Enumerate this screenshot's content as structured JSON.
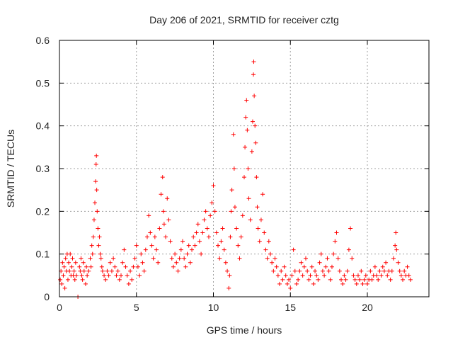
{
  "chart_data": {
    "type": "scatter",
    "title": "Day 206 of 2021, SRMTID for receiver cztg",
    "xlabel": "GPS time / hours",
    "ylabel": "SRMTID / TECUs",
    "xlim": [
      0,
      24
    ],
    "ylim": [
      0,
      0.6
    ],
    "xticks": [
      0,
      5,
      10,
      15,
      20
    ],
    "yticks": [
      0,
      0.1,
      0.2,
      0.3,
      0.4,
      0.5,
      0.6
    ],
    "xtick_labels": [
      "0",
      "5",
      "10",
      "15",
      "20"
    ],
    "ytick_labels": [
      "0",
      "0.1",
      "0.2",
      "0.3",
      "0.4",
      "0.5",
      "0.6"
    ],
    "grid": true,
    "marker": "plus",
    "marker_color": "#ff0000",
    "series": [
      {
        "name": "SRMTID",
        "points": [
          [
            0.05,
            0.04
          ],
          [
            0.1,
            0.06
          ],
          [
            0.15,
            0.03
          ],
          [
            0.2,
            0.08
          ],
          [
            0.25,
            0.05
          ],
          [
            0.3,
            0.07
          ],
          [
            0.35,
            0.02
          ],
          [
            0.4,
            0.09
          ],
          [
            0.45,
            0.06
          ],
          [
            0.5,
            0.1
          ],
          [
            0.55,
            0.04
          ],
          [
            0.6,
            0.08
          ],
          [
            0.65,
            0.06
          ],
          [
            0.7,
            0.1
          ],
          [
            0.75,
            0.05
          ],
          [
            0.8,
            0.07
          ],
          [
            0.85,
            0.09
          ],
          [
            0.9,
            0.05
          ],
          [
            0.95,
            0.06
          ],
          [
            1.0,
            0.04
          ],
          [
            1.05,
            0.08
          ],
          [
            1.1,
            0.05
          ],
          [
            1.2,
            0.0
          ],
          [
            1.3,
            0.07
          ],
          [
            1.35,
            0.06
          ],
          [
            1.4,
            0.09
          ],
          [
            1.45,
            0.05
          ],
          [
            1.5,
            0.04
          ],
          [
            1.55,
            0.08
          ],
          [
            1.6,
            0.06
          ],
          [
            1.7,
            0.03
          ],
          [
            1.75,
            0.07
          ],
          [
            1.8,
            0.05
          ],
          [
            1.9,
            0.06
          ],
          [
            2.0,
            0.09
          ],
          [
            2.05,
            0.07
          ],
          [
            2.1,
            0.12
          ],
          [
            2.15,
            0.1
          ],
          [
            2.2,
            0.14
          ],
          [
            2.25,
            0.18
          ],
          [
            2.3,
            0.22
          ],
          [
            2.35,
            0.27
          ],
          [
            2.38,
            0.31
          ],
          [
            2.4,
            0.33
          ],
          [
            2.42,
            0.25
          ],
          [
            2.45,
            0.2
          ],
          [
            2.5,
            0.16
          ],
          [
            2.55,
            0.12
          ],
          [
            2.6,
            0.14
          ],
          [
            2.65,
            0.1
          ],
          [
            2.7,
            0.09
          ],
          [
            2.75,
            0.07
          ],
          [
            2.8,
            0.06
          ],
          [
            2.9,
            0.05
          ],
          [
            3.0,
            0.04
          ],
          [
            3.1,
            0.06
          ],
          [
            3.2,
            0.05
          ],
          [
            3.3,
            0.08
          ],
          [
            3.4,
            0.06
          ],
          [
            3.5,
            0.09
          ],
          [
            3.6,
            0.07
          ],
          [
            3.7,
            0.05
          ],
          [
            3.8,
            0.06
          ],
          [
            3.9,
            0.04
          ],
          [
            4.0,
            0.05
          ],
          [
            4.1,
            0.08
          ],
          [
            4.2,
            0.11
          ],
          [
            4.3,
            0.07
          ],
          [
            4.4,
            0.05
          ],
          [
            4.5,
            0.03
          ],
          [
            4.6,
            0.06
          ],
          [
            4.7,
            0.04
          ],
          [
            4.8,
            0.07
          ],
          [
            4.9,
            0.09
          ],
          [
            5.0,
            0.12
          ],
          [
            5.1,
            0.07
          ],
          [
            5.2,
            0.05
          ],
          [
            5.3,
            0.1
          ],
          [
            5.4,
            0.08
          ],
          [
            5.5,
            0.06
          ],
          [
            5.6,
            0.11
          ],
          [
            5.7,
            0.14
          ],
          [
            5.8,
            0.19
          ],
          [
            5.9,
            0.15
          ],
          [
            6.0,
            0.12
          ],
          [
            6.1,
            0.09
          ],
          [
            6.2,
            0.14
          ],
          [
            6.3,
            0.11
          ],
          [
            6.4,
            0.08
          ],
          [
            6.5,
            0.16
          ],
          [
            6.6,
            0.24
          ],
          [
            6.7,
            0.28
          ],
          [
            6.75,
            0.2
          ],
          [
            6.8,
            0.17
          ],
          [
            6.9,
            0.14
          ],
          [
            7.0,
            0.23
          ],
          [
            7.1,
            0.18
          ],
          [
            7.2,
            0.13
          ],
          [
            7.3,
            0.09
          ],
          [
            7.4,
            0.07
          ],
          [
            7.5,
            0.1
          ],
          [
            7.6,
            0.08
          ],
          [
            7.7,
            0.06
          ],
          [
            7.8,
            0.09
          ],
          [
            7.9,
            0.11
          ],
          [
            8.0,
            0.13
          ],
          [
            8.1,
            0.09
          ],
          [
            8.2,
            0.07
          ],
          [
            8.3,
            0.1
          ],
          [
            8.4,
            0.12
          ],
          [
            8.5,
            0.08
          ],
          [
            8.6,
            0.11
          ],
          [
            8.7,
            0.14
          ],
          [
            8.8,
            0.12
          ],
          [
            8.9,
            0.15
          ],
          [
            9.0,
            0.17
          ],
          [
            9.1,
            0.13
          ],
          [
            9.2,
            0.1
          ],
          [
            9.3,
            0.15
          ],
          [
            9.4,
            0.18
          ],
          [
            9.5,
            0.2
          ],
          [
            9.6,
            0.16
          ],
          [
            9.7,
            0.14
          ],
          [
            9.8,
            0.19
          ],
          [
            9.9,
            0.22
          ],
          [
            10.0,
            0.26
          ],
          [
            10.1,
            0.2
          ],
          [
            10.2,
            0.15
          ],
          [
            10.3,
            0.12
          ],
          [
            10.4,
            0.09
          ],
          [
            10.5,
            0.13
          ],
          [
            10.6,
            0.16
          ],
          [
            10.7,
            0.11
          ],
          [
            10.8,
            0.08
          ],
          [
            10.9,
            0.06
          ],
          [
            11.0,
            0.02
          ],
          [
            11.05,
            0.05
          ],
          [
            11.1,
            0.14
          ],
          [
            11.15,
            0.2
          ],
          [
            11.2,
            0.25
          ],
          [
            11.3,
            0.38
          ],
          [
            11.35,
            0.3
          ],
          [
            11.4,
            0.21
          ],
          [
            11.5,
            0.16
          ],
          [
            11.6,
            0.12
          ],
          [
            11.7,
            0.09
          ],
          [
            11.8,
            0.14
          ],
          [
            11.9,
            0.19
          ],
          [
            12.0,
            0.28
          ],
          [
            12.05,
            0.35
          ],
          [
            12.1,
            0.42
          ],
          [
            12.15,
            0.46
          ],
          [
            12.2,
            0.39
          ],
          [
            12.25,
            0.3
          ],
          [
            12.3,
            0.23
          ],
          [
            12.4,
            0.18
          ],
          [
            12.5,
            0.34
          ],
          [
            12.55,
            0.41
          ],
          [
            12.6,
            0.52
          ],
          [
            12.62,
            0.55
          ],
          [
            12.65,
            0.47
          ],
          [
            12.7,
            0.4
          ],
          [
            12.75,
            0.36
          ],
          [
            12.8,
            0.28
          ],
          [
            12.85,
            0.21
          ],
          [
            12.9,
            0.16
          ],
          [
            13.0,
            0.13
          ],
          [
            13.1,
            0.18
          ],
          [
            13.2,
            0.24
          ],
          [
            13.3,
            0.15
          ],
          [
            13.4,
            0.11
          ],
          [
            13.5,
            0.09
          ],
          [
            13.6,
            0.13
          ],
          [
            13.7,
            0.1
          ],
          [
            13.8,
            0.08
          ],
          [
            13.9,
            0.06
          ],
          [
            14.0,
            0.09
          ],
          [
            14.1,
            0.07
          ],
          [
            14.2,
            0.05
          ],
          [
            14.3,
            0.03
          ],
          [
            14.4,
            0.06
          ],
          [
            14.5,
            0.04
          ],
          [
            14.6,
            0.07
          ],
          [
            14.7,
            0.05
          ],
          [
            14.8,
            0.03
          ],
          [
            14.9,
            0.04
          ],
          [
            15.0,
            0.02
          ],
          [
            15.1,
            0.05
          ],
          [
            15.2,
            0.11
          ],
          [
            15.3,
            0.06
          ],
          [
            15.4,
            0.03
          ],
          [
            15.5,
            0.04
          ],
          [
            15.6,
            0.06
          ],
          [
            15.7,
            0.08
          ],
          [
            15.8,
            0.05
          ],
          [
            15.9,
            0.07
          ],
          [
            16.0,
            0.09
          ],
          [
            16.1,
            0.06
          ],
          [
            16.2,
            0.04
          ],
          [
            16.3,
            0.05
          ],
          [
            16.4,
            0.07
          ],
          [
            16.5,
            0.03
          ],
          [
            16.6,
            0.06
          ],
          [
            16.7,
            0.05
          ],
          [
            16.8,
            0.04
          ],
          [
            16.9,
            0.08
          ],
          [
            17.0,
            0.1
          ],
          [
            17.1,
            0.06
          ],
          [
            17.2,
            0.05
          ],
          [
            17.3,
            0.07
          ],
          [
            17.4,
            0.09
          ],
          [
            17.5,
            0.06
          ],
          [
            17.6,
            0.04
          ],
          [
            17.7,
            0.07
          ],
          [
            17.8,
            0.1
          ],
          [
            17.9,
            0.13
          ],
          [
            18.0,
            0.15
          ],
          [
            18.1,
            0.09
          ],
          [
            18.2,
            0.06
          ],
          [
            18.3,
            0.04
          ],
          [
            18.4,
            0.03
          ],
          [
            18.5,
            0.05
          ],
          [
            18.6,
            0.04
          ],
          [
            18.7,
            0.06
          ],
          [
            18.8,
            0.11
          ],
          [
            18.9,
            0.16
          ],
          [
            19.0,
            0.09
          ],
          [
            19.1,
            0.05
          ],
          [
            19.2,
            0.04
          ],
          [
            19.3,
            0.03
          ],
          [
            19.4,
            0.05
          ],
          [
            19.5,
            0.04
          ],
          [
            19.6,
            0.06
          ],
          [
            19.7,
            0.03
          ],
          [
            19.8,
            0.04
          ],
          [
            19.9,
            0.05
          ],
          [
            20.0,
            0.03
          ],
          [
            20.1,
            0.04
          ],
          [
            20.2,
            0.06
          ],
          [
            20.3,
            0.04
          ],
          [
            20.4,
            0.05
          ],
          [
            20.5,
            0.07
          ],
          [
            20.6,
            0.05
          ],
          [
            20.7,
            0.04
          ],
          [
            20.8,
            0.06
          ],
          [
            20.9,
            0.05
          ],
          [
            21.0,
            0.07
          ],
          [
            21.1,
            0.06
          ],
          [
            21.2,
            0.08
          ],
          [
            21.3,
            0.05
          ],
          [
            21.4,
            0.06
          ],
          [
            21.5,
            0.04
          ],
          [
            21.6,
            0.06
          ],
          [
            21.7,
            0.09
          ],
          [
            21.8,
            0.12
          ],
          [
            21.85,
            0.15
          ],
          [
            21.9,
            0.11
          ],
          [
            22.0,
            0.08
          ],
          [
            22.1,
            0.06
          ],
          [
            22.2,
            0.05
          ],
          [
            22.3,
            0.04
          ],
          [
            22.4,
            0.06
          ],
          [
            22.5,
            0.05
          ],
          [
            22.6,
            0.07
          ],
          [
            22.7,
            0.05
          ],
          [
            22.8,
            0.04
          ]
        ]
      }
    ]
  }
}
